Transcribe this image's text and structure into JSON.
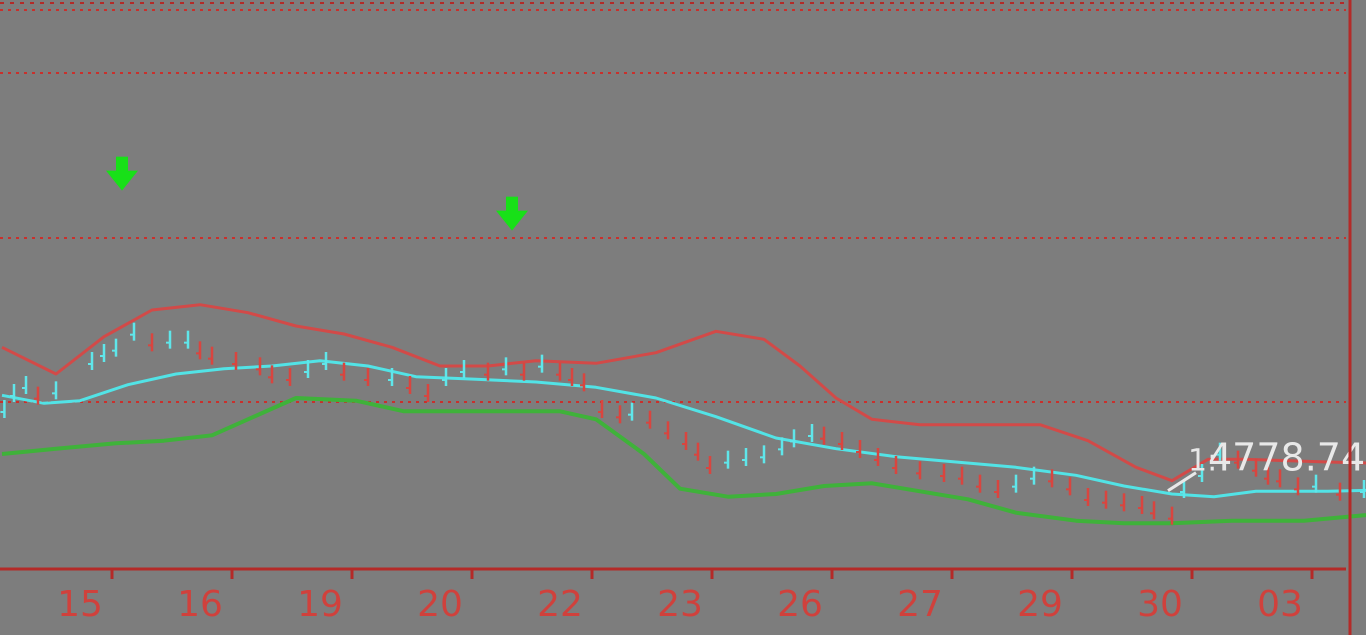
{
  "colors": {
    "background": "#7d7d7d",
    "grid": "#c9302c",
    "axis": "#b42a28",
    "tick_label": "#d0413c",
    "upper_band": "#d24a48",
    "middle_band": "#52e3e6",
    "lower_band": "#3fb23a",
    "bar_up": "#5fe6ea",
    "bar_down": "#d9453f",
    "signal_arrow": "#18e018",
    "annotation": "#e8e8e8"
  },
  "chart_data": {
    "type": "line",
    "x_tick_labels": [
      "15",
      "16",
      "19",
      "20",
      "22",
      "23",
      "26",
      "27",
      "29",
      "30",
      "03"
    ],
    "ylim": [
      4740,
      4950
    ],
    "grid": "horizontal-dotted",
    "annotation": {
      "label": "4778.74",
      "prefix": "1:",
      "value": 4778.74,
      "x": 9.45
    },
    "signal_arrows": [
      {
        "x": 0.35,
        "y": 4886,
        "direction": "down"
      },
      {
        "x": 3.6,
        "y": 4871,
        "direction": "down"
      }
    ],
    "series": [
      {
        "role": "upper",
        "points": [
          [
            -0.65,
            4822
          ],
          [
            -0.2,
            4812
          ],
          [
            0.2,
            4826
          ],
          [
            0.6,
            4836
          ],
          [
            1.0,
            4838
          ],
          [
            1.4,
            4835
          ],
          [
            1.8,
            4830
          ],
          [
            2.2,
            4827
          ],
          [
            2.6,
            4822
          ],
          [
            3.0,
            4815
          ],
          [
            3.4,
            4815
          ],
          [
            3.8,
            4817
          ],
          [
            4.3,
            4816
          ],
          [
            4.8,
            4820
          ],
          [
            5.3,
            4828
          ],
          [
            5.7,
            4825
          ],
          [
            6.0,
            4815
          ],
          [
            6.3,
            4803
          ],
          [
            6.6,
            4795
          ],
          [
            7.0,
            4793
          ],
          [
            7.5,
            4793
          ],
          [
            8.0,
            4793
          ],
          [
            8.4,
            4787
          ],
          [
            8.8,
            4777
          ],
          [
            9.1,
            4772
          ],
          [
            9.4,
            4780
          ],
          [
            9.7,
            4780
          ],
          [
            10.4,
            4779
          ],
          [
            11.3,
            4778
          ]
        ]
      },
      {
        "role": "middle",
        "points": [
          [
            -0.65,
            4804
          ],
          [
            -0.3,
            4801
          ],
          [
            0.0,
            4802
          ],
          [
            0.4,
            4808
          ],
          [
            0.8,
            4812
          ],
          [
            1.2,
            4814
          ],
          [
            1.6,
            4815
          ],
          [
            2.0,
            4817
          ],
          [
            2.4,
            4815
          ],
          [
            2.8,
            4811
          ],
          [
            3.3,
            4810
          ],
          [
            3.8,
            4809
          ],
          [
            4.3,
            4807
          ],
          [
            4.8,
            4803
          ],
          [
            5.3,
            4796
          ],
          [
            5.8,
            4788
          ],
          [
            6.3,
            4784
          ],
          [
            6.8,
            4781
          ],
          [
            7.3,
            4779
          ],
          [
            7.8,
            4777
          ],
          [
            8.3,
            4774
          ],
          [
            8.7,
            4770
          ],
          [
            9.1,
            4767
          ],
          [
            9.45,
            4766
          ],
          [
            9.8,
            4768
          ],
          [
            10.4,
            4768
          ],
          [
            11.3,
            4769
          ]
        ]
      },
      {
        "role": "lower",
        "points": [
          [
            -0.65,
            4782
          ],
          [
            -0.2,
            4784
          ],
          [
            0.3,
            4786
          ],
          [
            0.7,
            4787
          ],
          [
            1.1,
            4789
          ],
          [
            1.5,
            4797
          ],
          [
            1.8,
            4803
          ],
          [
            2.3,
            4802
          ],
          [
            2.7,
            4798
          ],
          [
            3.1,
            4798
          ],
          [
            3.5,
            4798
          ],
          [
            4.0,
            4798
          ],
          [
            4.3,
            4795
          ],
          [
            4.7,
            4782
          ],
          [
            5.0,
            4769
          ],
          [
            5.4,
            4766
          ],
          [
            5.8,
            4767
          ],
          [
            6.2,
            4770
          ],
          [
            6.6,
            4771
          ],
          [
            7.0,
            4768
          ],
          [
            7.4,
            4765
          ],
          [
            7.8,
            4760
          ],
          [
            8.3,
            4757
          ],
          [
            8.7,
            4756
          ],
          [
            9.1,
            4756
          ],
          [
            9.6,
            4757
          ],
          [
            10.2,
            4757
          ],
          [
            10.7,
            4759
          ],
          [
            11.3,
            4761
          ]
        ]
      },
      {
        "role": "price-bars",
        "points": [
          [
            -0.63,
            4797
          ],
          [
            -0.55,
            4803
          ],
          [
            -0.45,
            4806
          ],
          [
            -0.35,
            4802
          ],
          [
            -0.2,
            4804
          ],
          [
            0.1,
            4815
          ],
          [
            0.2,
            4818
          ],
          [
            0.3,
            4820
          ],
          [
            0.45,
            4826
          ],
          [
            0.6,
            4822
          ],
          [
            0.75,
            4823
          ],
          [
            0.9,
            4823
          ],
          [
            1.0,
            4819
          ],
          [
            1.1,
            4817
          ],
          [
            1.3,
            4815
          ],
          [
            1.5,
            4813
          ],
          [
            1.6,
            4810
          ],
          [
            1.75,
            4809
          ],
          [
            1.9,
            4812
          ],
          [
            2.05,
            4815
          ],
          [
            2.2,
            4811
          ],
          [
            2.4,
            4809
          ],
          [
            2.6,
            4809
          ],
          [
            2.75,
            4806
          ],
          [
            2.9,
            4803
          ],
          [
            3.05,
            4809
          ],
          [
            3.2,
            4812
          ],
          [
            3.4,
            4811
          ],
          [
            3.55,
            4813
          ],
          [
            3.7,
            4811
          ],
          [
            3.85,
            4814
          ],
          [
            4.0,
            4811
          ],
          [
            4.1,
            4809
          ],
          [
            4.2,
            4807
          ],
          [
            4.35,
            4797
          ],
          [
            4.5,
            4795
          ],
          [
            4.6,
            4796
          ],
          [
            4.75,
            4793
          ],
          [
            4.9,
            4789
          ],
          [
            5.05,
            4785
          ],
          [
            5.15,
            4781
          ],
          [
            5.25,
            4776
          ],
          [
            5.4,
            4778
          ],
          [
            5.55,
            4779
          ],
          [
            5.7,
            4780
          ],
          [
            5.85,
            4783
          ],
          [
            5.95,
            4786
          ],
          [
            6.1,
            4788
          ],
          [
            6.2,
            4787
          ],
          [
            6.35,
            4785
          ],
          [
            6.5,
            4782
          ],
          [
            6.65,
            4779
          ],
          [
            6.8,
            4776
          ],
          [
            7.0,
            4774
          ],
          [
            7.2,
            4773
          ],
          [
            7.35,
            4772
          ],
          [
            7.5,
            4769
          ],
          [
            7.65,
            4767
          ],
          [
            7.8,
            4769
          ],
          [
            7.95,
            4772
          ],
          [
            8.1,
            4771
          ],
          [
            8.25,
            4768
          ],
          [
            8.4,
            4764
          ],
          [
            8.55,
            4763
          ],
          [
            8.7,
            4762
          ],
          [
            8.85,
            4761
          ],
          [
            8.95,
            4759
          ],
          [
            9.1,
            4757
          ],
          [
            9.2,
            4767
          ],
          [
            9.35,
            4773
          ],
          [
            9.5,
            4781
          ],
          [
            9.65,
            4778
          ],
          [
            9.8,
            4775
          ],
          [
            9.9,
            4772
          ],
          [
            10.0,
            4771
          ],
          [
            10.15,
            4768
          ],
          [
            10.3,
            4769
          ],
          [
            10.5,
            4766
          ],
          [
            10.7,
            4767
          ],
          [
            10.85,
            4769
          ],
          [
            11.0,
            4766
          ],
          [
            11.15,
            4766
          ],
          [
            11.25,
            4767
          ]
        ]
      }
    ]
  }
}
